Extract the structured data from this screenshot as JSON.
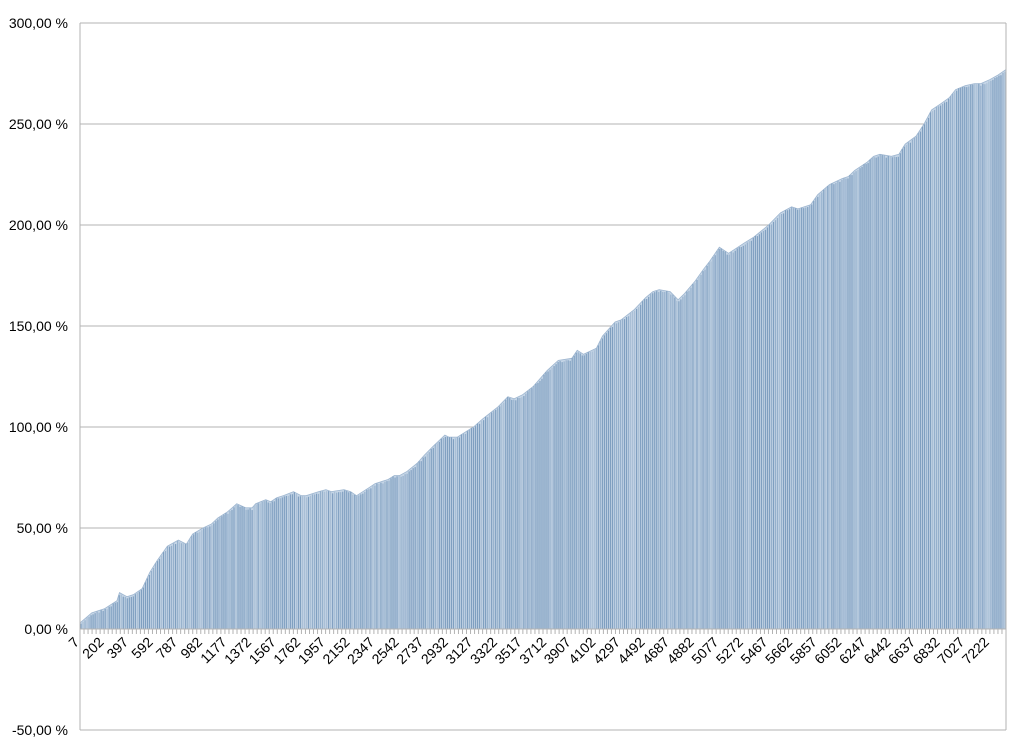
{
  "chart_data": {
    "type": "bar",
    "title": "",
    "xlabel": "",
    "ylabel": "",
    "x_domain": [
      7,
      7350
    ],
    "x_ticks": [
      7,
      202,
      397,
      592,
      787,
      982,
      1177,
      1372,
      1567,
      1762,
      1957,
      2152,
      2347,
      2542,
      2737,
      2932,
      3127,
      3322,
      3517,
      3712,
      3907,
      4102,
      4297,
      4492,
      4687,
      4882,
      5077,
      5272,
      5467,
      5662,
      5857,
      6052,
      6247,
      6442,
      6637,
      6832,
      7027,
      7222
    ],
    "ylim": [
      -50,
      300
    ],
    "y_ticks": [
      {
        "value": -50,
        "label": "-50,00 %"
      },
      {
        "value": 0,
        "label": "0,00 %"
      },
      {
        "value": 50,
        "label": "50,00 %"
      },
      {
        "value": 100,
        "label": "100,00 %"
      },
      {
        "value": 150,
        "label": "150,00 %"
      },
      {
        "value": 200,
        "label": "200,00 %"
      },
      {
        "value": 250,
        "label": "250,00 %"
      },
      {
        "value": 300,
        "label": "300,00 %"
      }
    ],
    "grid": true,
    "legend": "none",
    "series": [
      {
        "x": [
          7,
          100,
          200,
          300,
          320,
          380,
          430,
          500,
          560,
          620,
          700,
          787,
          850,
          900,
          982,
          1050,
          1100,
          1177,
          1250,
          1320,
          1372,
          1400,
          1480,
          1520,
          1567,
          1620,
          1700,
          1762,
          1800,
          1900,
          1957,
          2000,
          2100,
          2152,
          2200,
          2300,
          2347,
          2450,
          2500,
          2542,
          2600,
          2680,
          2737,
          2800,
          2900,
          2932,
          3000,
          3050,
          3127,
          3200,
          3322,
          3400,
          3450,
          3517,
          3600,
          3712,
          3800,
          3907,
          3950,
          4000,
          4102,
          4150,
          4250,
          4297,
          4400,
          4492,
          4550,
          4600,
          4687,
          4750,
          4800,
          4882,
          4950,
          5000,
          5077,
          5150,
          5272,
          5350,
          5467,
          5562,
          5650,
          5700,
          5800,
          5857,
          5950,
          6052,
          6100,
          6150,
          6247,
          6300,
          6350,
          6442,
          6500,
          6550,
          6637,
          6700,
          6760,
          6832,
          6900,
          6950,
          7027,
          7100,
          7150,
          7222,
          7280,
          7350
        ],
        "y": [
          3,
          8,
          10,
          14,
          18,
          16,
          17,
          20,
          28,
          34,
          41,
          44,
          42,
          47,
          50,
          52,
          55,
          58,
          62,
          60,
          60,
          62,
          64,
          63,
          65,
          66,
          68,
          66,
          66,
          68,
          69,
          68,
          69,
          68,
          66,
          70,
          72,
          74,
          76,
          76,
          78,
          82,
          86,
          90,
          96,
          95,
          95,
          97,
          100,
          104,
          110,
          115,
          114,
          116,
          120,
          128,
          133,
          134,
          138,
          136,
          139,
          145,
          152,
          153,
          158,
          164,
          167,
          168,
          167,
          163,
          166,
          172,
          178,
          182,
          189,
          186,
          191,
          194,
          200,
          206,
          209,
          208,
          210,
          215,
          220,
          223,
          224,
          227,
          231,
          234,
          235,
          234,
          235,
          240,
          244,
          250,
          257,
          260,
          263,
          267,
          269,
          270,
          270,
          272,
          274,
          277
        ]
      }
    ]
  }
}
